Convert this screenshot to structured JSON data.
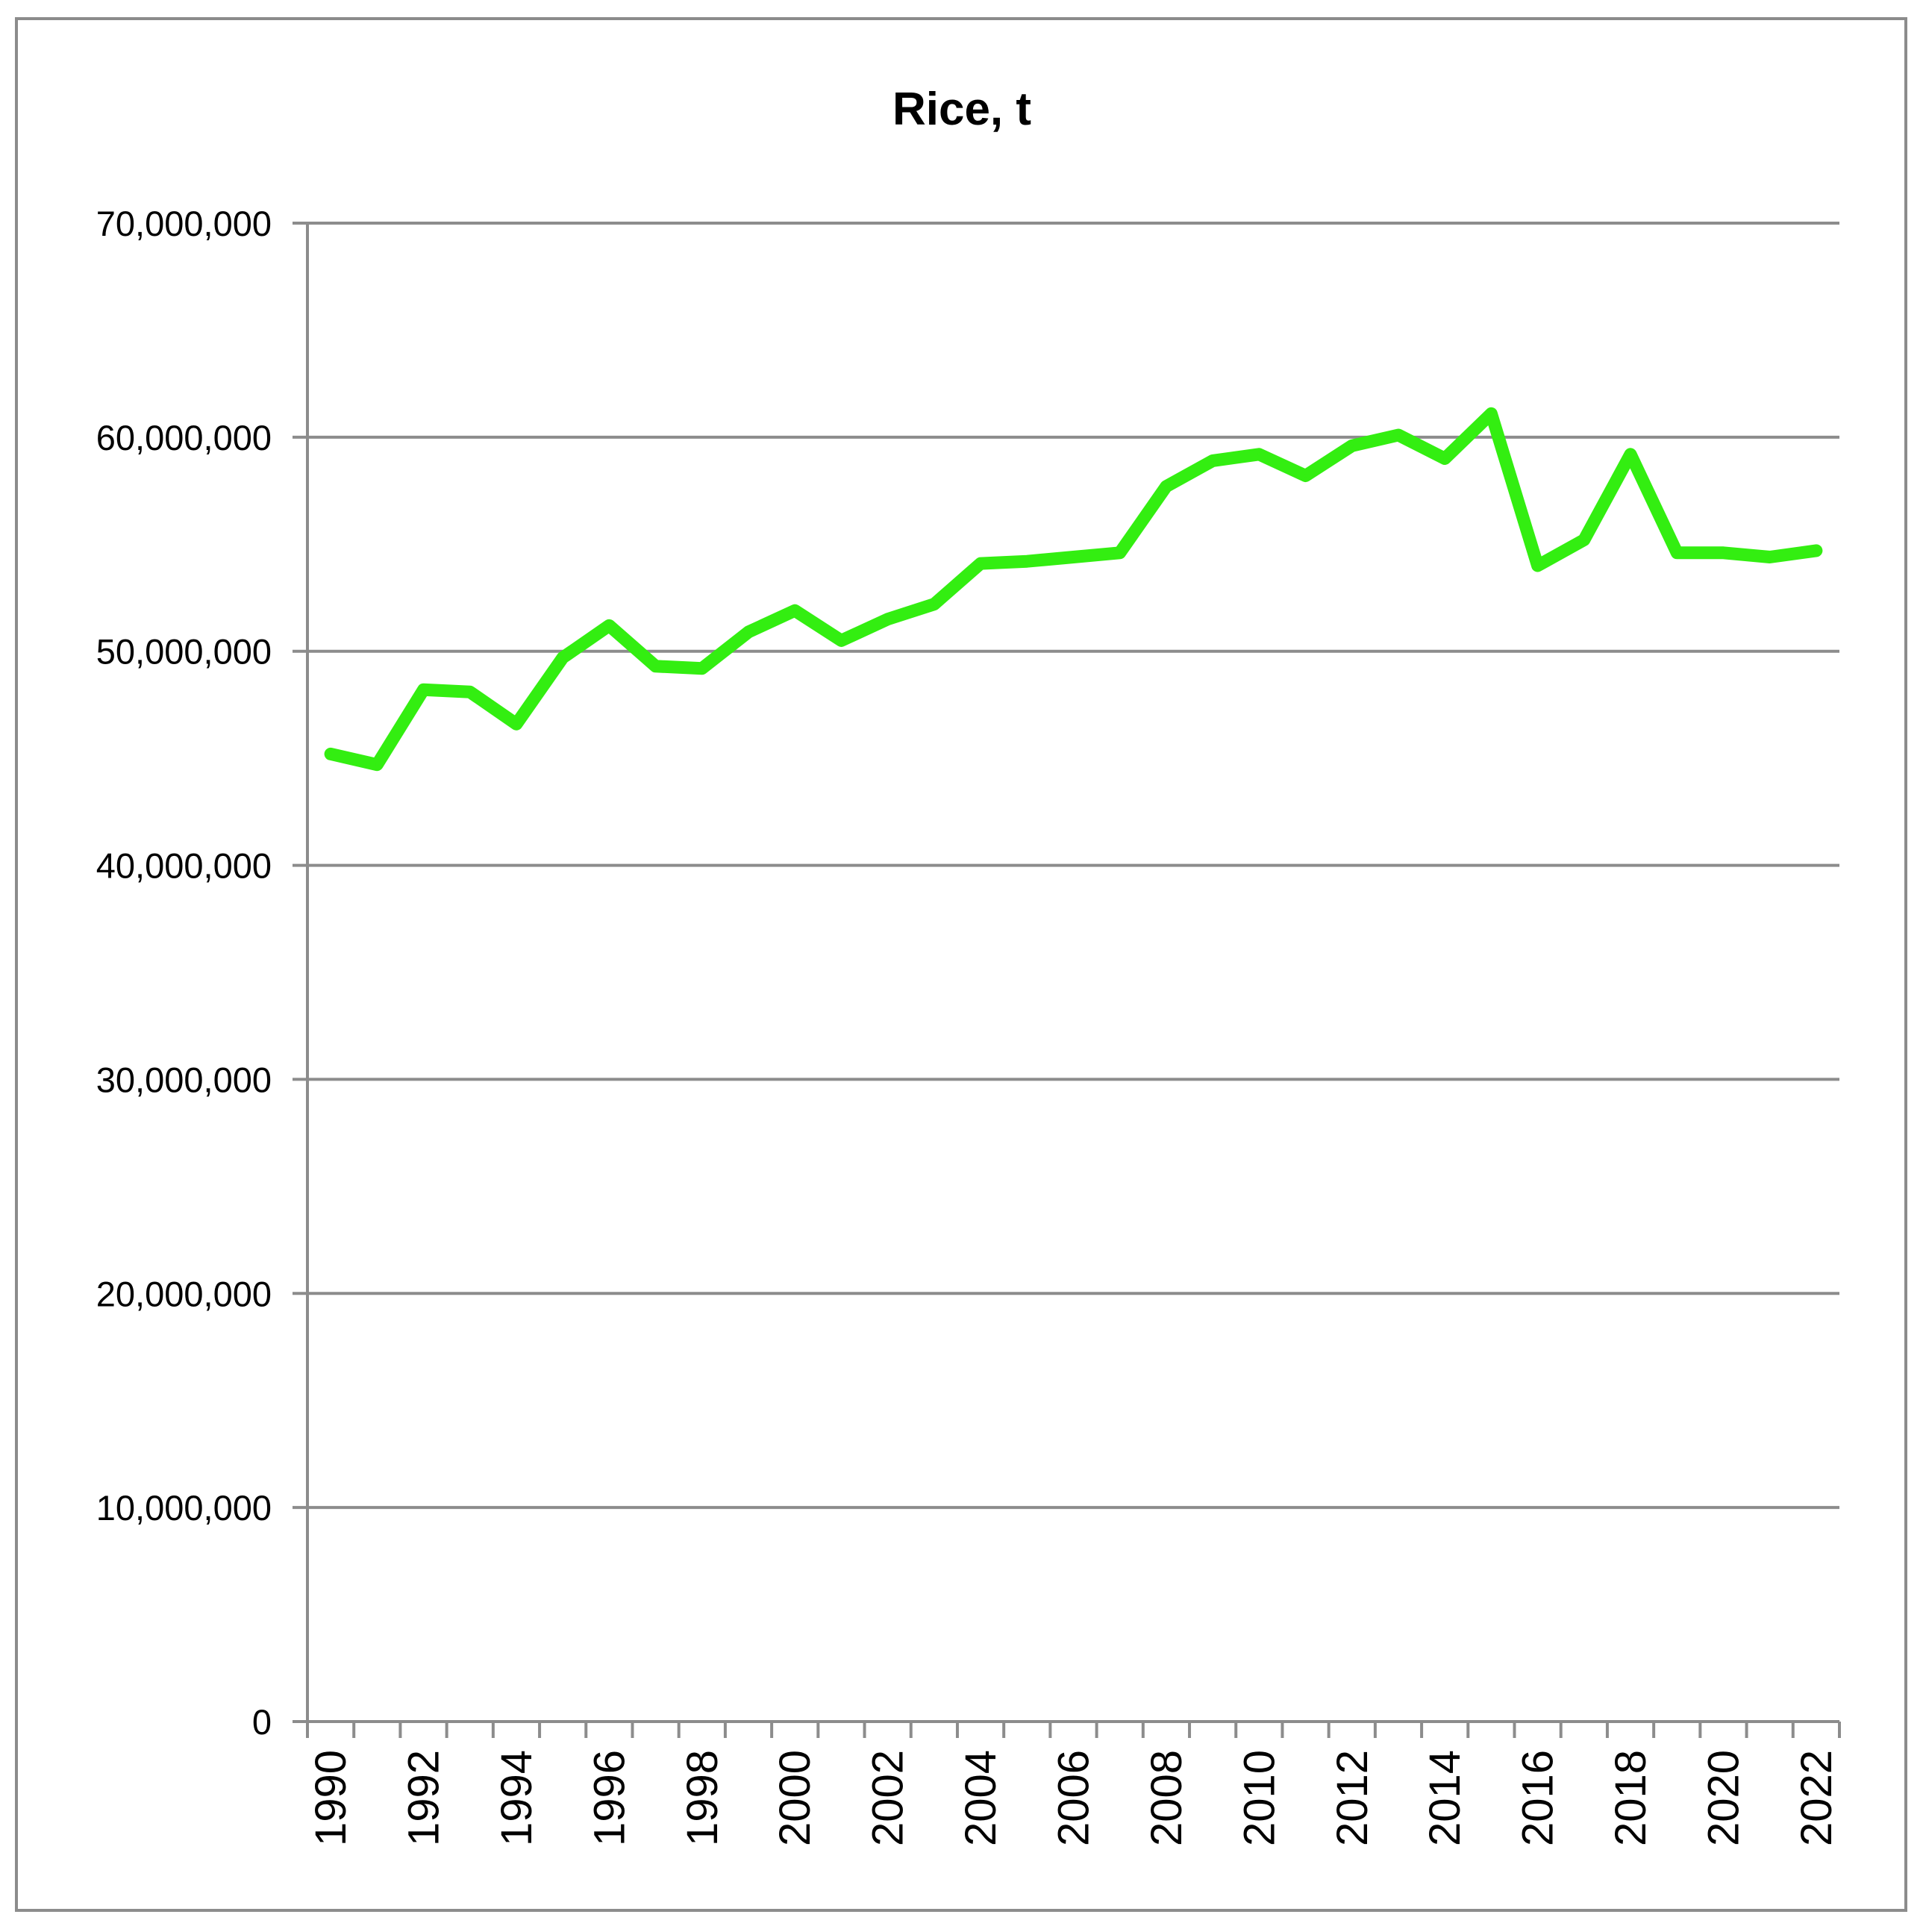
{
  "chart_data": {
    "type": "line",
    "title": "Rice, t",
    "xlabel": "",
    "ylabel": "",
    "ylim": [
      0,
      70000000
    ],
    "y_ticks": [
      0,
      10000000,
      20000000,
      30000000,
      40000000,
      50000000,
      60000000,
      70000000
    ],
    "y_tick_labels": [
      "0",
      "10,000,000",
      "20,000,000",
      "30,000,000",
      "40,000,000",
      "50,000,000",
      "60,000,000",
      "70,000,000"
    ],
    "x": [
      1990,
      1991,
      1992,
      1993,
      1994,
      1995,
      1996,
      1997,
      1998,
      1999,
      2000,
      2001,
      2002,
      2003,
      2004,
      2005,
      2006,
      2007,
      2008,
      2009,
      2010,
      2011,
      2012,
      2013,
      2014,
      2015,
      2016,
      2017,
      2018,
      2019,
      2020,
      2021,
      2022
    ],
    "x_tick_labels": [
      "1990",
      "1992",
      "1994",
      "1996",
      "1998",
      "2000",
      "2002",
      "2004",
      "2006",
      "2008",
      "2010",
      "2012",
      "2014",
      "2016",
      "2018",
      "2020",
      "2022"
    ],
    "grid": true,
    "legend": "none",
    "series": [
      {
        "name": "",
        "color": "#33ee11",
        "values": [
          45200000,
          44700000,
          48200000,
          48100000,
          46600000,
          49700000,
          51200000,
          49300000,
          49200000,
          50900000,
          51900000,
          50500000,
          51500000,
          52200000,
          54100000,
          54200000,
          54400000,
          54600000,
          57700000,
          58900000,
          59200000,
          58200000,
          59600000,
          60100000,
          59000000,
          61100000,
          54000000,
          55200000,
          59200000,
          54600000,
          54600000,
          54400000,
          54700000
        ]
      }
    ]
  }
}
